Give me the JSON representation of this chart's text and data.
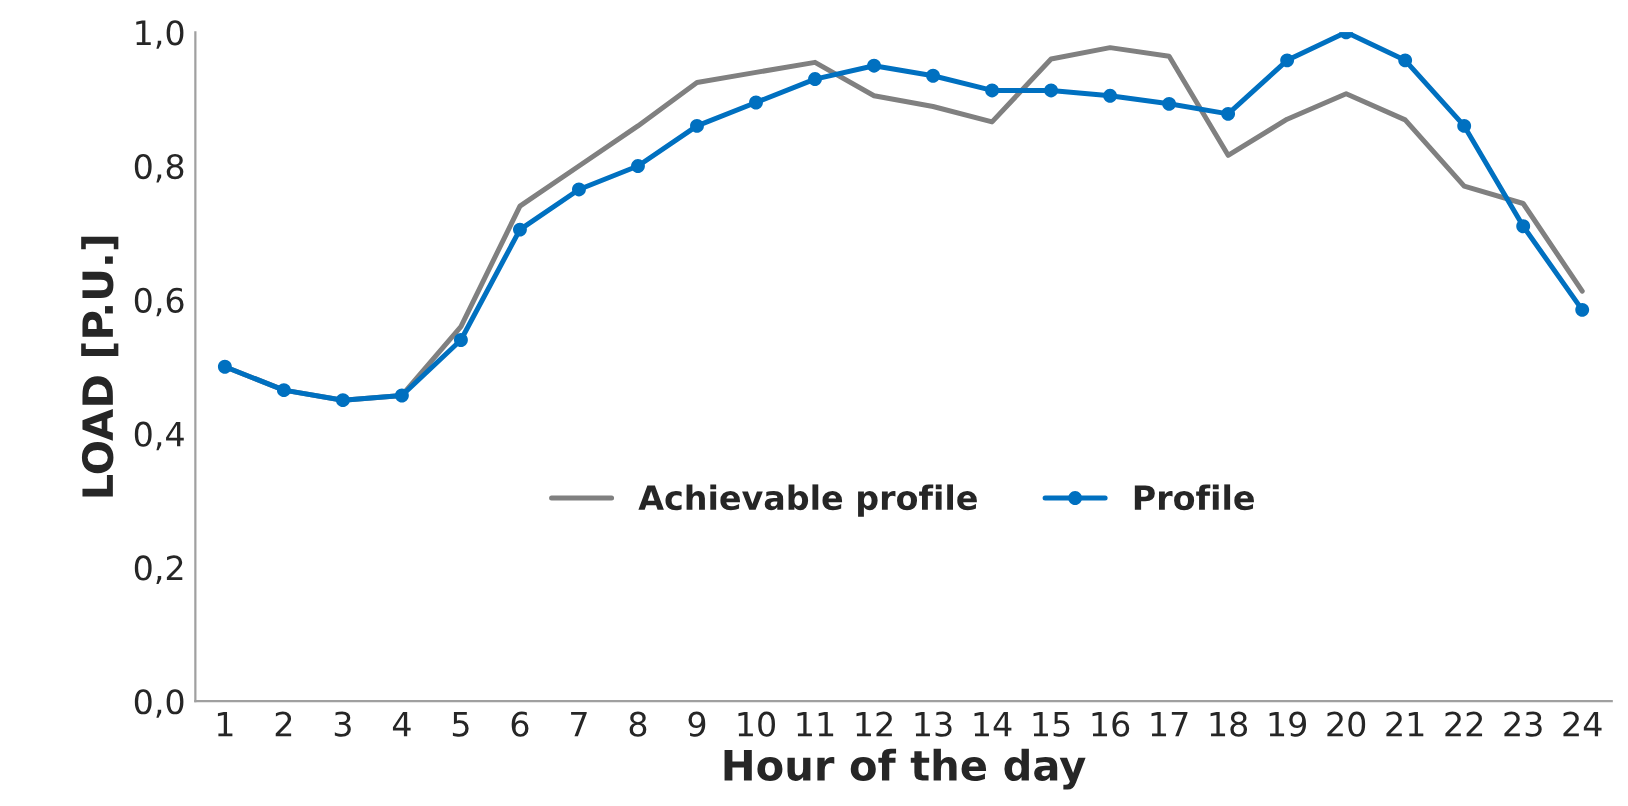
{
  "chart_data": {
    "type": "line",
    "xlabel": "Hour of the day",
    "ylabel": "LOAD [P.U.]",
    "categories": [
      "1",
      "2",
      "3",
      "4",
      "5",
      "6",
      "7",
      "8",
      "9",
      "10",
      "11",
      "12",
      "13",
      "14",
      "15",
      "16",
      "17",
      "18",
      "19",
      "20",
      "21",
      "22",
      "23",
      "24"
    ],
    "series": [
      {
        "name": "Achievable profile",
        "color": "#808080",
        "marker": "none",
        "values": [
          0.5,
          0.465,
          0.45,
          0.457,
          0.56,
          0.74,
          0.8,
          0.86,
          0.925,
          0.94,
          0.955,
          0.905,
          0.889,
          0.866,
          0.96,
          0.977,
          0.964,
          0.816,
          0.87,
          0.908,
          0.869,
          0.77,
          0.744,
          0.613
        ]
      },
      {
        "name": "Profile",
        "color": "#0070c0",
        "marker": "circle",
        "values": [
          0.5,
          0.465,
          0.45,
          0.457,
          0.54,
          0.705,
          0.765,
          0.8,
          0.86,
          0.895,
          0.93,
          0.95,
          0.935,
          0.913,
          0.913,
          0.905,
          0.893,
          0.878,
          0.958,
          1.0,
          0.958,
          0.86,
          0.71,
          0.585
        ]
      }
    ],
    "ylim": [
      0,
      1
    ],
    "yticks": [
      {
        "value": 0,
        "label": "0,0"
      },
      {
        "value": 0.2,
        "label": "0,2"
      },
      {
        "value": 0.4,
        "label": "0,4"
      },
      {
        "value": 0.6,
        "label": "0,6"
      },
      {
        "value": 0.8,
        "label": "0,8"
      },
      {
        "value": 1,
        "label": "1,0"
      }
    ],
    "grid": false,
    "legend": "center"
  }
}
